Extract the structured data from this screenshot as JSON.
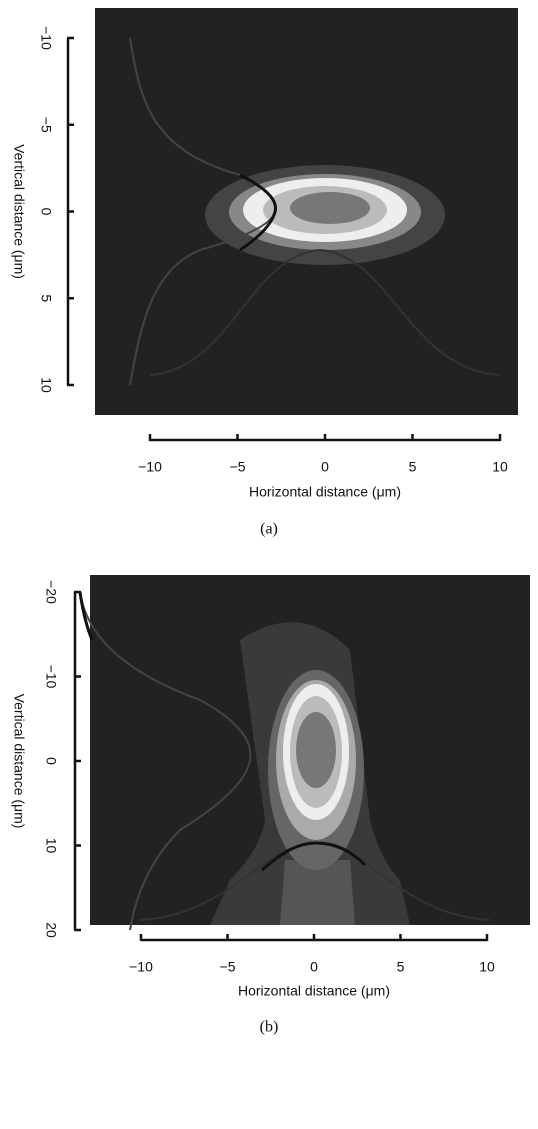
{
  "chart_data": [
    {
      "type": "image",
      "caption": "(a)",
      "xlabel": "Horizontal distance (μm)",
      "ylabel": "Vertical distance (μm)",
      "xlim": [
        -10,
        10
      ],
      "xticks": [
        {
          "value": -10,
          "label": "−10"
        },
        {
          "value": -5,
          "label": "−5"
        },
        0,
        5,
        10
      ],
      "ylim": [
        -10,
        10
      ],
      "yticks": [
        {
          "value": -10,
          "label": "−10"
        },
        {
          "value": -5,
          "label": "−5"
        },
        0,
        5,
        10
      ]
    },
    {
      "type": "image",
      "caption": "(b)",
      "xlabel": "Horizontal distance (μm)",
      "ylabel": "Vertical distance (μm)",
      "xlim": [
        -10,
        10
      ],
      "xticks": [
        {
          "value": -10,
          "label": "−10"
        },
        {
          "value": -5,
          "label": "−5"
        },
        0,
        5,
        10
      ],
      "ylim": [
        -20,
        20
      ],
      "yticks": [
        {
          "value": -20,
          "label": "−20"
        },
        {
          "value": -10,
          "label": "−10"
        },
        0,
        10,
        20
      ]
    }
  ]
}
